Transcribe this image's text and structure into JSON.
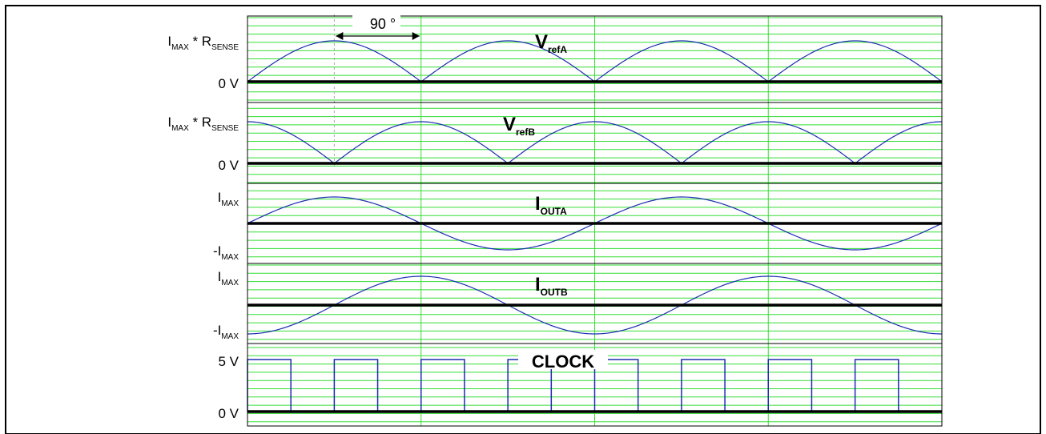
{
  "colors": {
    "grid": "#33dd33",
    "wave": "#1a2fb0",
    "baseline": "#000000",
    "frame": "#000000"
  },
  "panels": [
    {
      "id": "vrefA",
      "title_main": "V",
      "title_sub": "refA",
      "top_label": {
        "main": "I",
        "sub": "MAX",
        "rest": " * R",
        "sub2": "SENSE"
      },
      "bottom_label": "0 V",
      "waveform": "abs-sine",
      "phase_deg": 0
    },
    {
      "id": "vrefB",
      "title_main": "V",
      "title_sub": "refB",
      "top_label": {
        "main": "I",
        "sub": "MAX",
        "rest": " * R",
        "sub2": "SENSE"
      },
      "bottom_label": "0 V",
      "waveform": "abs-cosine",
      "phase_deg": 90
    },
    {
      "id": "ioutA",
      "title_main": "I",
      "title_sub": "OUTA",
      "top_label": {
        "main": "I",
        "sub": "MAX"
      },
      "bottom_label": {
        "pre": "-I",
        "sub": "MAX"
      },
      "waveform": "sine",
      "phase_deg": 0
    },
    {
      "id": "ioutB",
      "title_main": "I",
      "title_sub": "OUTB",
      "top_label": {
        "main": "I",
        "sub": "MAX"
      },
      "bottom_label": {
        "pre": "-I",
        "sub": "MAX"
      },
      "waveform": "minus-cosine",
      "phase_deg": 90
    },
    {
      "id": "clock",
      "title_main": "CLOCK",
      "top_label": "5 V",
      "bottom_label": "0 V",
      "waveform": "square",
      "pulses_per_half_period": 2
    }
  ],
  "phase_annotation": "90 °",
  "cycles_shown": 2,
  "time_span_deg": 720
}
